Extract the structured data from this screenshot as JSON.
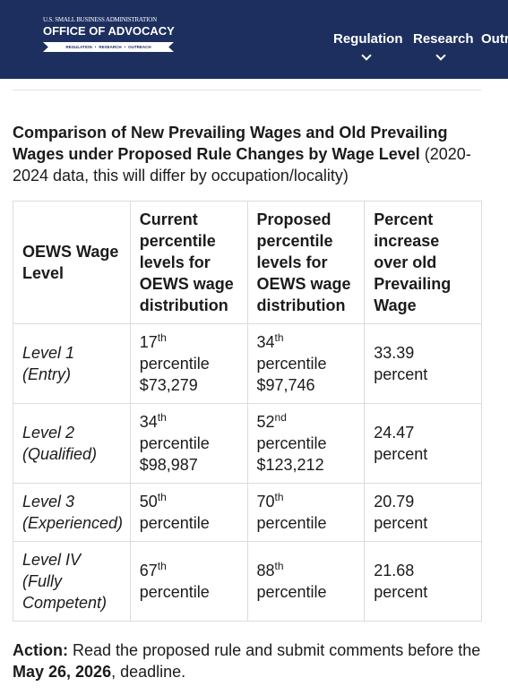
{
  "header": {
    "agency": "U.S. SMALL BUSINESS ADMINISTRATION",
    "office": "OFFICE OF ADVOCACY",
    "tagline": [
      "REGULATION",
      "RESEARCH",
      "OUTREACH"
    ],
    "nav": [
      "Regulation",
      "Research",
      "Outr"
    ]
  },
  "intro": {
    "bold": "Comparison of New Prevailing Wages and Old Prevailing Wages under Proposed Rule Changes by Wage Level",
    "text": "(2020-2024 data, this will differ by occupation/locality)"
  },
  "table": {
    "columns": [
      "OEWS Wage Level",
      "Current percentile levels for OEWS wage distribution",
      "Proposed percentile levels for OEWS wage distribution",
      "Percent increase over old Prevailing Wage"
    ],
    "rows": [
      {
        "level": "Level 1 (Entry)",
        "current": {
          "rank": "17",
          "suffix": "th",
          "word": "percentile",
          "wage": "$73,279"
        },
        "proposed": {
          "rank": "34",
          "suffix": "th",
          "word": "percentile",
          "wage": "$97,746"
        },
        "increase": "33.39 percent"
      },
      {
        "level": "Level 2 (Qualified)",
        "current": {
          "rank": "34",
          "suffix": "th",
          "word": "percentile",
          "wage": "$98,987"
        },
        "proposed": {
          "rank": "52",
          "suffix": "nd",
          "word": "percentile",
          "wage": "$123,212"
        },
        "increase": "24.47 percent"
      },
      {
        "level": "Level 3 (Experienced)",
        "current": {
          "rank": "50",
          "suffix": "th",
          "word": "percentile"
        },
        "proposed": {
          "rank": "70",
          "suffix": "th",
          "word": "percentile"
        },
        "increase": "20.79 percent"
      },
      {
        "level": "Level IV (Fully Competent)",
        "current": {
          "rank": "67",
          "suffix": "th",
          "word": "percentile"
        },
        "proposed": {
          "rank": "88",
          "suffix": "th",
          "word": "percentile"
        },
        "increase": "21.68 percent"
      }
    ]
  },
  "action": {
    "label": "Action:",
    "text": "Read the proposed rule and submit comments before the",
    "date": "May 26, 2026",
    "end": ", deadline."
  }
}
